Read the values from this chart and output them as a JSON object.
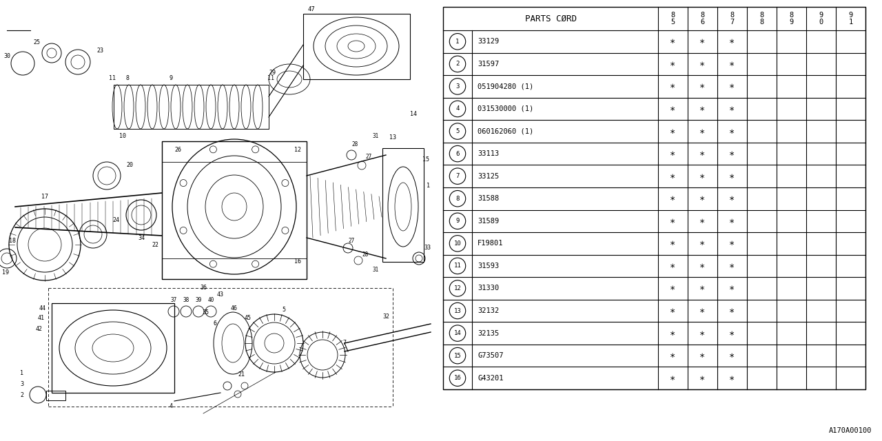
{
  "bg_color": "#ffffff",
  "col_header": "PARTS CØRD",
  "year_cols": [
    "8\n5",
    "8\n6",
    "8\n7",
    "8\n8",
    "8\n9",
    "9\n0",
    "9\n1"
  ],
  "rows": [
    {
      "num": "1",
      "code": "33129",
      "marks": [
        true,
        true,
        true,
        false,
        false,
        false,
        false
      ]
    },
    {
      "num": "2",
      "code": "31597",
      "marks": [
        true,
        true,
        true,
        false,
        false,
        false,
        false
      ]
    },
    {
      "num": "3",
      "code": "051904280 (1)",
      "marks": [
        true,
        true,
        true,
        false,
        false,
        false,
        false
      ]
    },
    {
      "num": "4",
      "code": "031530000 (1)",
      "marks": [
        true,
        true,
        true,
        false,
        false,
        false,
        false
      ]
    },
    {
      "num": "5",
      "code": "060162060 (1)",
      "marks": [
        true,
        true,
        true,
        false,
        false,
        false,
        false
      ]
    },
    {
      "num": "6",
      "code": "33113",
      "marks": [
        true,
        true,
        true,
        false,
        false,
        false,
        false
      ]
    },
    {
      "num": "7",
      "code": "33125",
      "marks": [
        true,
        true,
        true,
        false,
        false,
        false,
        false
      ]
    },
    {
      "num": "8",
      "code": "31588",
      "marks": [
        true,
        true,
        true,
        false,
        false,
        false,
        false
      ]
    },
    {
      "num": "9",
      "code": "31589",
      "marks": [
        true,
        true,
        true,
        false,
        false,
        false,
        false
      ]
    },
    {
      "num": "10",
      "code": "F19801",
      "marks": [
        true,
        true,
        true,
        false,
        false,
        false,
        false
      ]
    },
    {
      "num": "11",
      "code": "31593",
      "marks": [
        true,
        true,
        true,
        false,
        false,
        false,
        false
      ]
    },
    {
      "num": "12",
      "code": "31330",
      "marks": [
        true,
        true,
        true,
        false,
        false,
        false,
        false
      ]
    },
    {
      "num": "13",
      "code": "32132",
      "marks": [
        true,
        true,
        true,
        false,
        false,
        false,
        false
      ]
    },
    {
      "num": "14",
      "code": "32135",
      "marks": [
        true,
        true,
        true,
        false,
        false,
        false,
        false
      ]
    },
    {
      "num": "15",
      "code": "G73507",
      "marks": [
        true,
        true,
        true,
        false,
        false,
        false,
        false
      ]
    },
    {
      "num": "16",
      "code": "G43201",
      "marks": [
        true,
        true,
        true,
        false,
        false,
        false,
        false
      ]
    }
  ],
  "footnote": "A170A00100",
  "line_color": "#000000",
  "text_color": "#000000"
}
